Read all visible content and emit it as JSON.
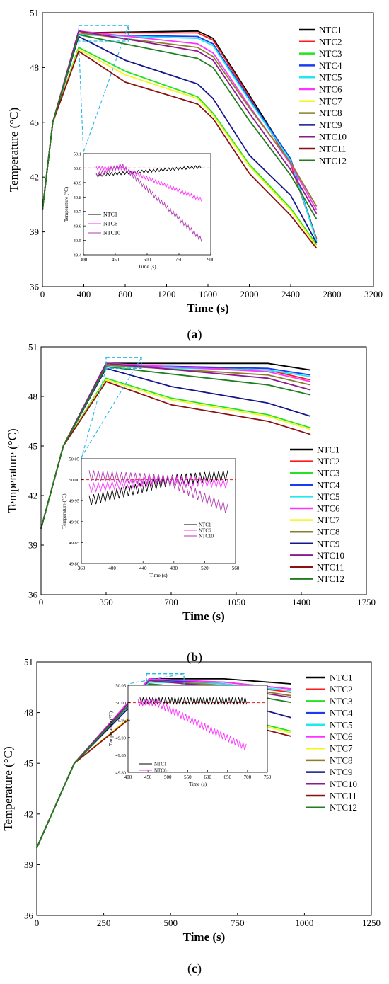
{
  "figure": {
    "panel_labels": [
      "(a)",
      "(b)",
      "(c)"
    ],
    "colors": {
      "NTC1": "#000000",
      "NTC2": "#ff1a1a",
      "NTC3": "#22e322",
      "NTC4": "#1a3cf0",
      "NTC5": "#20e8f0",
      "NTC6": "#ff33ff",
      "NTC7": "#f5f51a",
      "NTC8": "#8b7d2a",
      "NTC9": "#16168c",
      "NTC10": "#8c1a8c",
      "NTC11": "#8c1010",
      "NTC12": "#1f7f1f"
    },
    "inset_colors": {
      "NTC1": "#000000",
      "NTC6": "#ff33ff",
      "NTC10": "#b03ab0"
    },
    "reference_line_color": "#e02020",
    "highlight_box_color": "#27b5e8"
  },
  "chart_data": [
    {
      "type": "line",
      "panel": "a",
      "xlabel": "Time (s)",
      "ylabel": "Temperature (°C)",
      "xlim": [
        0,
        3200
      ],
      "ylim": [
        36,
        51
      ],
      "xticks": [
        0,
        400,
        800,
        1200,
        1600,
        2000,
        2400,
        2800,
        3200
      ],
      "yticks": [
        36,
        39,
        42,
        45,
        48,
        51
      ],
      "legend": "top-right",
      "series": [
        {
          "name": "NTC1",
          "x": [
            0,
            100,
            350,
            1500,
            1650,
            2000,
            2400,
            2650
          ],
          "y": [
            40.2,
            45.0,
            49.9,
            50.0,
            49.6,
            46.5,
            42.9,
            38.6
          ]
        },
        {
          "name": "NTC2",
          "x": [
            0,
            100,
            350,
            1500,
            1650,
            2000,
            2400,
            2650
          ],
          "y": [
            40.2,
            45.0,
            49.9,
            49.9,
            49.5,
            46.4,
            42.7,
            38.6
          ]
        },
        {
          "name": "NTC3",
          "x": [
            0,
            100,
            350,
            800,
            1500,
            1650,
            2000,
            2400,
            2650
          ],
          "y": [
            40.2,
            45.0,
            49.1,
            47.8,
            46.4,
            45.5,
            42.7,
            40.3,
            38.3
          ]
        },
        {
          "name": "NTC4",
          "x": [
            0,
            100,
            350,
            1500,
            1650,
            2000,
            2400,
            2650
          ],
          "y": [
            40.2,
            45.0,
            49.8,
            49.7,
            49.3,
            46.3,
            43.0,
            38.5
          ]
        },
        {
          "name": "NTC5",
          "x": [
            0,
            100,
            350,
            1500,
            1650,
            2000,
            2400,
            2650
          ],
          "y": [
            40.2,
            45.0,
            49.8,
            49.6,
            49.2,
            46.2,
            42.9,
            38.5
          ]
        },
        {
          "name": "NTC6",
          "x": [
            0,
            100,
            350,
            1500,
            1650,
            2000,
            2400,
            2650
          ],
          "y": [
            40.2,
            45.0,
            50.0,
            49.3,
            48.8,
            45.9,
            42.7,
            40.2
          ]
        },
        {
          "name": "NTC7",
          "x": [
            0,
            100,
            350,
            800,
            1500,
            1650,
            2000,
            2400,
            2650
          ],
          "y": [
            40.2,
            45.0,
            49.0,
            47.6,
            46.3,
            45.4,
            42.6,
            40.2,
            38.2
          ]
        },
        {
          "name": "NTC8",
          "x": [
            0,
            100,
            350,
            1500,
            1650,
            2000,
            2400,
            2650
          ],
          "y": [
            40.2,
            45.0,
            49.9,
            49.1,
            48.6,
            45.8,
            42.8,
            40.4
          ]
        },
        {
          "name": "NTC9",
          "x": [
            0,
            100,
            350,
            800,
            1500,
            1650,
            2000,
            2400,
            2650
          ],
          "y": [
            40.2,
            45.0,
            49.7,
            48.4,
            47.1,
            46.3,
            43.2,
            41.0,
            38.4
          ]
        },
        {
          "name": "NTC10",
          "x": [
            0,
            100,
            350,
            1500,
            1650,
            2000,
            2400,
            2650
          ],
          "y": [
            40.2,
            45.0,
            50.0,
            48.9,
            48.4,
            45.5,
            42.4,
            40.0
          ]
        },
        {
          "name": "NTC11",
          "x": [
            0,
            100,
            350,
            800,
            1500,
            1650,
            2000,
            2400,
            2650
          ],
          "y": [
            40.2,
            45.0,
            48.9,
            47.2,
            46.0,
            45.2,
            42.2,
            39.9,
            38.1
          ]
        },
        {
          "name": "NTC12",
          "x": [
            0,
            100,
            350,
            1500,
            1650,
            2000,
            2400,
            2650
          ],
          "y": [
            40.2,
            45.0,
            49.8,
            48.5,
            48.0,
            45.1,
            42.1,
            39.7
          ]
        }
      ],
      "inset": {
        "xlabel": "Time (s)",
        "ylabel": "Temperature (°C)",
        "xlim": [
          300,
          900
        ],
        "ylim": [
          49.4,
          50.1
        ],
        "xticks": [
          300,
          450,
          600,
          750,
          900
        ],
        "yticks": [
          49.4,
          49.5,
          49.6,
          49.7,
          49.8,
          49.9,
          50.0,
          50.1
        ],
        "reference_y": 50.0,
        "legend": "bottom-left",
        "series": [
          {
            "name": "NTC1",
            "x": [
              360,
              860
            ],
            "y": [
              49.95,
              50.01
            ],
            "oscillation": 0.02,
            "period": 18
          },
          {
            "name": "NTC6",
            "x": [
              360,
              480,
              860
            ],
            "y": [
              50.0,
              50.0,
              49.78
            ],
            "oscillation": 0.025,
            "period": 14
          },
          {
            "name": "NTC10",
            "x": [
              360,
              480,
              860
            ],
            "y": [
              49.95,
              50.02,
              49.5
            ],
            "oscillation": 0.03,
            "period": 14
          }
        ]
      },
      "highlight": {
        "x": [
          350,
          830
        ],
        "y": [
          49.45,
          50.3
        ]
      }
    },
    {
      "type": "line",
      "panel": "b",
      "xlabel": "Time (s)",
      "ylabel": "Temperature (°C)",
      "xlim": [
        0,
        1750
      ],
      "ylim": [
        36,
        51
      ],
      "xticks": [
        0,
        350,
        700,
        1050,
        1400,
        1750
      ],
      "yticks": [
        36,
        39,
        42,
        45,
        48,
        51
      ],
      "legend": "right",
      "series": [
        {
          "name": "NTC1",
          "x": [
            0,
            120,
            350,
            1220,
            1450
          ],
          "y": [
            40.0,
            45.0,
            50.0,
            50.0,
            49.6
          ]
        },
        {
          "name": "NTC2",
          "x": [
            0,
            120,
            350,
            1220,
            1450
          ],
          "y": [
            40.0,
            45.0,
            49.9,
            49.6,
            49.0
          ]
        },
        {
          "name": "NTC3",
          "x": [
            0,
            120,
            350,
            700,
            1220,
            1450
          ],
          "y": [
            40.0,
            45.0,
            49.1,
            47.9,
            46.9,
            46.1
          ]
        },
        {
          "name": "NTC4",
          "x": [
            0,
            120,
            350,
            1220,
            1450
          ],
          "y": [
            40.0,
            45.0,
            49.9,
            49.7,
            49.3
          ]
        },
        {
          "name": "NTC5",
          "x": [
            0,
            120,
            350,
            1220,
            1450
          ],
          "y": [
            40.0,
            45.0,
            49.8,
            49.6,
            49.2
          ]
        },
        {
          "name": "NTC6",
          "x": [
            0,
            120,
            350,
            1220,
            1450
          ],
          "y": [
            40.0,
            45.0,
            50.0,
            49.5,
            48.9
          ]
        },
        {
          "name": "NTC7",
          "x": [
            0,
            120,
            350,
            700,
            1220,
            1450
          ],
          "y": [
            40.0,
            45.0,
            49.0,
            47.8,
            46.8,
            46.0
          ]
        },
        {
          "name": "NTC8",
          "x": [
            0,
            120,
            350,
            1220,
            1450
          ],
          "y": [
            40.0,
            45.0,
            49.9,
            49.3,
            48.7
          ]
        },
        {
          "name": "NTC9",
          "x": [
            0,
            120,
            350,
            700,
            1220,
            1450
          ],
          "y": [
            40.0,
            45.0,
            49.7,
            48.6,
            47.6,
            46.8
          ]
        },
        {
          "name": "NTC10",
          "x": [
            0,
            120,
            350,
            1220,
            1450
          ],
          "y": [
            40.0,
            45.0,
            50.0,
            49.1,
            48.4
          ]
        },
        {
          "name": "NTC11",
          "x": [
            0,
            120,
            350,
            700,
            1220,
            1450
          ],
          "y": [
            40.0,
            45.0,
            48.9,
            47.5,
            46.5,
            45.7
          ]
        },
        {
          "name": "NTC12",
          "x": [
            0,
            120,
            350,
            1220,
            1450
          ],
          "y": [
            40.0,
            45.0,
            49.8,
            48.7,
            48.1
          ]
        }
      ],
      "inset": {
        "xlabel": "Time (s)",
        "ylabel": "Temperature (°C)",
        "xlim": [
          360,
          560
        ],
        "ylim": [
          49.8,
          50.05
        ],
        "xticks": [
          360,
          400,
          440,
          480,
          520,
          560
        ],
        "yticks": [
          49.8,
          49.85,
          49.9,
          49.95,
          50.0,
          50.05
        ],
        "reference_y": 50.0,
        "legend": "bottom-center",
        "series": [
          {
            "name": "NTC1",
            "x": [
              370,
              480,
              550
            ],
            "y": [
              49.95,
              50.0,
              50.01
            ],
            "oscillation": 0.025,
            "period": 6
          },
          {
            "name": "NTC6",
            "x": [
              370,
              470,
              550
            ],
            "y": [
              49.98,
              50.0,
              49.99
            ],
            "oscillation": 0.02,
            "period": 6
          },
          {
            "name": "NTC10",
            "x": [
              370,
              470,
              550
            ],
            "y": [
              50.01,
              50.0,
              49.93
            ],
            "oscillation": 0.025,
            "period": 6
          }
        ]
      },
      "highlight": {
        "x": [
          350,
          540
        ],
        "y": [
          49.7,
          50.35
        ]
      }
    },
    {
      "type": "line",
      "panel": "c",
      "xlabel": "Time (s)",
      "ylabel": "Temperature (°C)",
      "xlim": [
        0,
        1250
      ],
      "ylim": [
        36,
        51
      ],
      "xticks": [
        0,
        250,
        500,
        750,
        1000,
        1250
      ],
      "yticks": [
        36,
        39,
        42,
        45,
        48,
        51
      ],
      "legend": "top-right",
      "series": [
        {
          "name": "NTC1",
          "x": [
            0,
            140,
            420,
            700,
            950
          ],
          "y": [
            40.0,
            45.0,
            50.0,
            50.0,
            49.7
          ]
        },
        {
          "name": "NTC2",
          "x": [
            0,
            140,
            420,
            700,
            950
          ],
          "y": [
            40.0,
            45.0,
            49.9,
            49.7,
            49.2
          ]
        },
        {
          "name": "NTC3",
          "x": [
            0,
            140,
            430,
            700,
            950
          ],
          "y": [
            40.0,
            45.0,
            48.8,
            47.9,
            46.9
          ]
        },
        {
          "name": "NTC4",
          "x": [
            0,
            140,
            420,
            700,
            950
          ],
          "y": [
            40.0,
            45.0,
            49.9,
            49.8,
            49.4
          ]
        },
        {
          "name": "NTC5",
          "x": [
            0,
            140,
            420,
            700,
            950
          ],
          "y": [
            40.0,
            45.0,
            49.8,
            49.7,
            49.3
          ]
        },
        {
          "name": "NTC6",
          "x": [
            0,
            140,
            420,
            700,
            950
          ],
          "y": [
            40.0,
            45.0,
            50.0,
            49.8,
            49.4
          ]
        },
        {
          "name": "NTC7",
          "x": [
            0,
            140,
            430,
            700,
            950
          ],
          "y": [
            40.0,
            45.0,
            48.8,
            47.8,
            46.8
          ]
        },
        {
          "name": "NTC8",
          "x": [
            0,
            140,
            420,
            700,
            950
          ],
          "y": [
            40.0,
            45.0,
            49.9,
            49.6,
            49.0
          ]
        },
        {
          "name": "NTC9",
          "x": [
            0,
            140,
            420,
            700,
            950
          ],
          "y": [
            40.0,
            45.0,
            49.5,
            48.8,
            47.7
          ]
        },
        {
          "name": "NTC10",
          "x": [
            0,
            140,
            420,
            700,
            950
          ],
          "y": [
            40.0,
            45.0,
            49.9,
            49.5,
            48.9
          ]
        },
        {
          "name": "NTC11",
          "x": [
            0,
            140,
            430,
            700,
            950
          ],
          "y": [
            40.0,
            45.0,
            48.7,
            47.6,
            46.6
          ]
        },
        {
          "name": "NTC12",
          "x": [
            0,
            140,
            420,
            700,
            950
          ],
          "y": [
            40.0,
            45.0,
            49.7,
            49.3,
            48.6
          ]
        }
      ],
      "inset": {
        "xlabel": "Time (s)",
        "ylabel": "Temperature (°C)",
        "xlim": [
          400,
          750
        ],
        "ylim": [
          49.8,
          50.05
        ],
        "xticks": [
          400,
          450,
          500,
          550,
          600,
          650,
          700,
          750
        ],
        "yticks": [
          49.8,
          49.85,
          49.9,
          49.95,
          50.0,
          50.05
        ],
        "reference_y": 50.0,
        "legend": "bottom-left",
        "series": [
          {
            "name": "NTC1",
            "x": [
              430,
              700
            ],
            "y": [
              50.005,
              50.005
            ],
            "oscillation": 0.02,
            "period": 8
          },
          {
            "name": "NTC6",
            "x": [
              425,
              470,
              700
            ],
            "y": [
              50.0,
              50.0,
              49.87
            ],
            "oscillation": 0.02,
            "period": 8
          }
        ]
      },
      "highlight": {
        "x": [
          410,
          550
        ],
        "y": [
          49.6,
          50.3
        ]
      }
    }
  ]
}
